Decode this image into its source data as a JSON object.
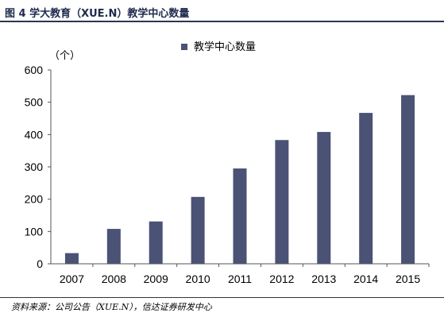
{
  "header": {
    "figure_title": "图 4   学大教育（XUE.N）教学中心数量"
  },
  "footer": {
    "source": "资料来源：公司公告（XUE.N），信达证券研发中心"
  },
  "colors": {
    "bar": "#4a5275",
    "axis": "#555555",
    "rule": "#2c3653"
  },
  "chart_data": {
    "type": "bar",
    "categories": [
      "2007",
      "2008",
      "2009",
      "2010",
      "2011",
      "2012",
      "2013",
      "2014",
      "2015"
    ],
    "series": [
      {
        "name": "教学中心数量",
        "values": [
          33,
          108,
          131,
          207,
          295,
          383,
          408,
          467,
          522
        ]
      }
    ],
    "ylim": [
      0,
      600
    ],
    "yticks": [
      0,
      100,
      200,
      300,
      400,
      500,
      600
    ],
    "unit_label": "（个）",
    "legend_position": "top-center",
    "grid": false
  }
}
